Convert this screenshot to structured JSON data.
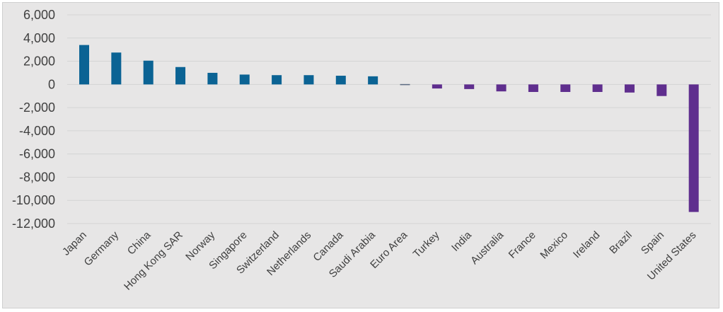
{
  "chart_data": {
    "type": "bar",
    "title": "",
    "xlabel": "",
    "ylabel": "",
    "ylim": [
      -12000,
      6000
    ],
    "ytick_values": [
      6000,
      4000,
      2000,
      0,
      -2000,
      -4000,
      -6000,
      -8000,
      -10000,
      -12000
    ],
    "ytick_labels": [
      "6,000",
      "4,000",
      "2,000",
      "0",
      "-2,000",
      "-4,000",
      "-6,000",
      "-8,000",
      "-10,000",
      "-12,000"
    ],
    "grid": true,
    "legend": "none",
    "categories": [
      "Japan",
      "Germany",
      "China",
      "Hong Kong SAR",
      "Norway",
      "Singapore",
      "Switzerland",
      "Netherlands",
      "Canada",
      "Saudi Arabia",
      "Euro Area",
      "Turkey",
      "India",
      "Australia",
      "France",
      "Mexico",
      "Ireland",
      "Brazil",
      "Spain",
      "United States"
    ],
    "values": [
      3400,
      2750,
      2050,
      1500,
      1000,
      850,
      800,
      800,
      750,
      700,
      -80,
      -350,
      -400,
      -600,
      -650,
      -650,
      -650,
      -700,
      -1000,
      -11000
    ],
    "colors": {
      "positive": "#0b6394",
      "negative": "#5f2e8e",
      "near_zero": "#5a6a80",
      "grid": "#d4d4d4",
      "text": "#404040"
    }
  }
}
